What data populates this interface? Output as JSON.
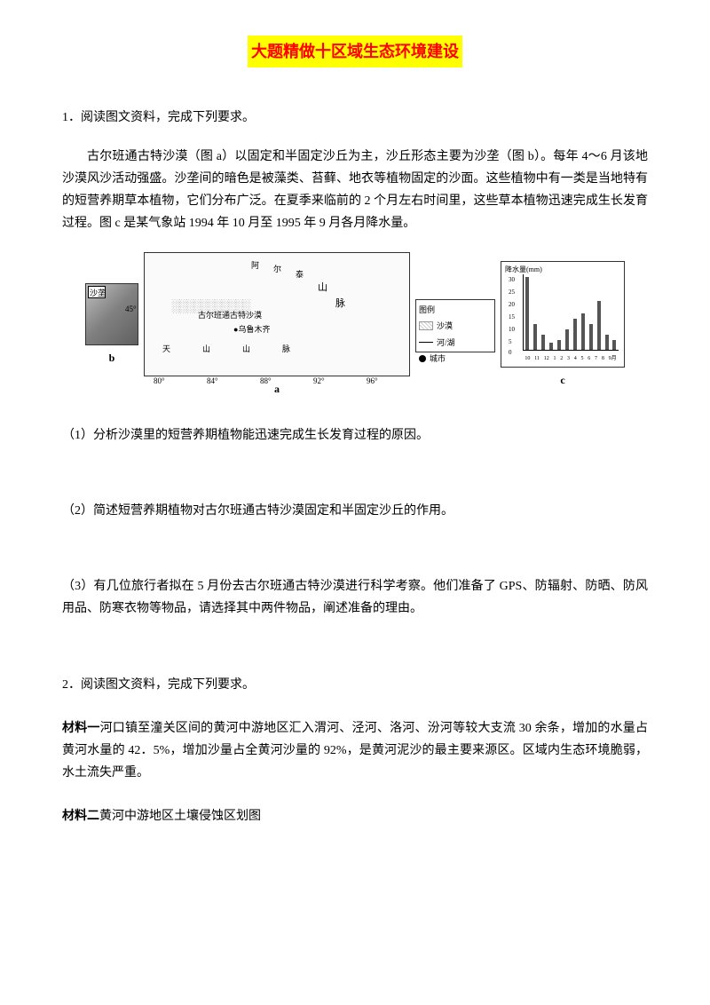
{
  "title": "大题精做十区域生态环境建设",
  "q1": {
    "intro": "1．阅读图文资料，完成下列要求。",
    "passage": "古尔班通古特沙漠（图 a）以固定和半固定沙丘为主，沙丘形态主要为沙垄（图 b）。每年 4～6 月该地沙漠风沙活动强盛。沙垄间的暗色是被藻类、苔藓、地衣等植物固定的沙面。这些植物中有一类是当地特有的短营养期草本植物，它们分布广泛。在夏季来临前的 2 个月左右时间里，这些草本植物迅速完成生长发育过程。图 c 是某气象站 1994 年 10 月至 1995 年 9 月各月降水量。",
    "sub1": "（1）分析沙漠里的短营养期植物能迅速完成生长发育过程的原因。",
    "sub2": "（2）简述短营养期植物对古尔班通古特沙漠固定和半固定沙丘的作用。",
    "sub3": "（3）有几位旅行者拟在 5 月份去古尔班通古特沙漠进行科学考察。他们准备了 GPS、防辐射、防晒、防风用品、防寒衣物等物品，请选择其中两件物品，阐述准备的理由。"
  },
  "figure": {
    "photo_label": "沙垄",
    "sub_b": "b",
    "sub_a": "a",
    "sub_c": "c",
    "map": {
      "place_aertai": "阿",
      "place_er": "尔",
      "place_tai": "泰",
      "mountain1": "山",
      "mountain2": "脉",
      "desert_name": "古尔班通古特沙漠",
      "city": "乌鲁木齐",
      "tianshan": "天　　山　　山　　脉",
      "lat": "45°",
      "lon1": "80°",
      "lon2": "84°",
      "lon3": "88°",
      "lon4": "92°",
      "lon5": "96°"
    },
    "legend": {
      "title": "图例",
      "desert": "沙漠",
      "river": "河/湖",
      "city": "城市"
    },
    "chart": {
      "ylabel": "降水量(mm)",
      "yticks": [
        "30",
        "25",
        "20",
        "15",
        "10",
        "5",
        "0"
      ],
      "xlabels": [
        "10",
        "11",
        "12",
        "1",
        "2",
        "3",
        "4",
        "5",
        "6",
        "7",
        "8",
        "9月"
      ],
      "values": [
        28,
        10,
        6,
        3,
        4,
        8,
        12,
        14,
        10,
        19,
        6,
        4
      ],
      "bar_color": "#555555",
      "ymax": 30
    }
  },
  "q2": {
    "intro": "2．阅读图文资料，完成下列要求。",
    "m1_label": "材料一",
    "m1_text": "河口镇至潼关区间的黄河中游地区汇入渭河、泾河、洛河、汾河等较大支流 30 余条，增加的水量占黄河水量的 42．5%，增加沙量占全黄河沙量的 92%，是黄河泥沙的最主要来源区。区域内生态环境脆弱，水土流失严重。",
    "m2_label": "材料二",
    "m2_text": "黄河中游地区土壤侵蚀区划图"
  }
}
